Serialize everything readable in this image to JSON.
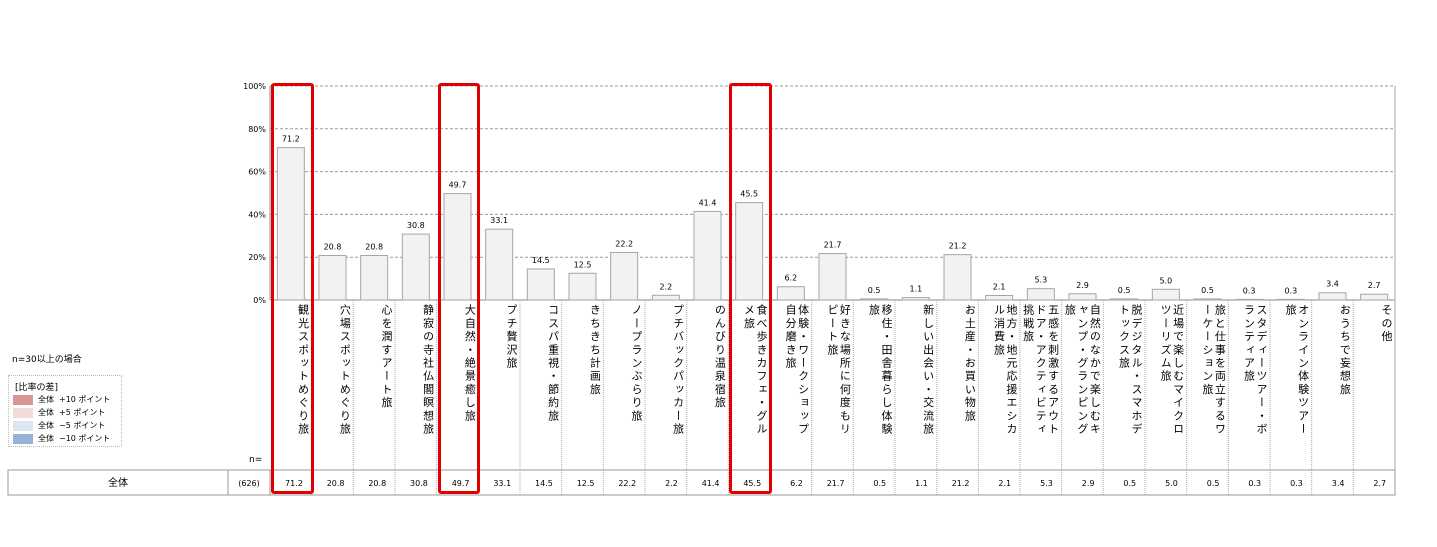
{
  "chart_data": {
    "type": "bar",
    "ylim": [
      0,
      100
    ],
    "yticks": [
      "0%",
      "20%",
      "40%",
      "60%",
      "80%",
      "100%"
    ],
    "grid": true,
    "categories": [
      "観光スポットめぐり旅",
      "穴場スポットめぐり旅",
      "心を潤すアート旅",
      "静寂の寺社仏閣瞑想旅",
      "大自然・絶景癒し旅",
      "プチ贅沢旅",
      "コスパ重視・節約旅",
      "きちきち計画旅",
      "ノープランぶらり旅",
      "プチバックパッカー旅",
      "のんびり温泉宿旅",
      "食べ歩きカフェ・グルメ旅",
      "体験・ワークショップ自分磨き旅",
      "好きな場所に何度もリピート旅",
      "移住・田舎暮らし体験旅",
      "新しい出会い・交流旅",
      "お土産・お買い物旅",
      "地方・地元応援エシカル消費旅",
      "五感を刺激するアウトドア・アクティビティ挑戦旅",
      "自然のなかで楽しむキャンプ・グランピング旅",
      "脱デジタル・スマホデトックス旅",
      "近場で楽しむマイクロツーリズム旅",
      "旅と仕事を両立するワーケーション旅",
      "スタディーツアー・ボランティア旅",
      "オンライン体験ツアー旅",
      "おうちで妄想旅",
      "その他"
    ],
    "values": [
      71.2,
      20.8,
      20.8,
      30.8,
      49.7,
      33.1,
      14.5,
      12.5,
      22.2,
      2.2,
      41.4,
      45.5,
      6.2,
      21.7,
      0.5,
      1.1,
      21.2,
      2.1,
      5.3,
      2.9,
      0.5,
      5.0,
      0.5,
      0.3,
      0.3,
      3.4,
      2.7
    ],
    "highlighted": [
      0,
      4,
      11
    ],
    "bar_color": "#f2f2f2",
    "highlight_color": "#e00000",
    "table": {
      "row_label": "全体",
      "n": "(626)",
      "n_header": "n="
    }
  },
  "note": "n=30以上の場合",
  "legend": {
    "title": "[比率の差]",
    "items": [
      {
        "label": "全体",
        "value": "+10 ポイント",
        "color": "#da9694"
      },
      {
        "label": "全体",
        "value": "+5 ポイント",
        "color": "#f2dcdb"
      },
      {
        "label": "全体",
        "value": "−5 ポイント",
        "color": "#dce6f1"
      },
      {
        "label": "全体",
        "value": "−10 ポイント",
        "color": "#95b3d7"
      }
    ]
  }
}
